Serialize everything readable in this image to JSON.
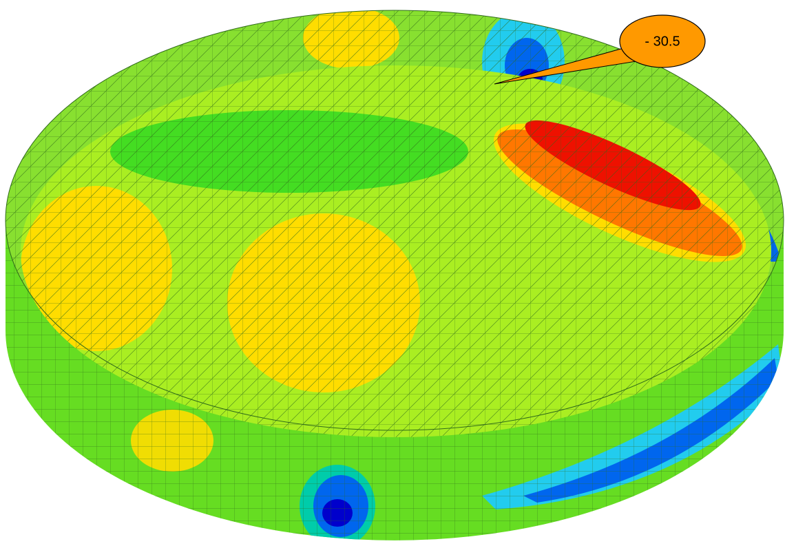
{
  "callout": {
    "label": "- 30.5"
  }
}
